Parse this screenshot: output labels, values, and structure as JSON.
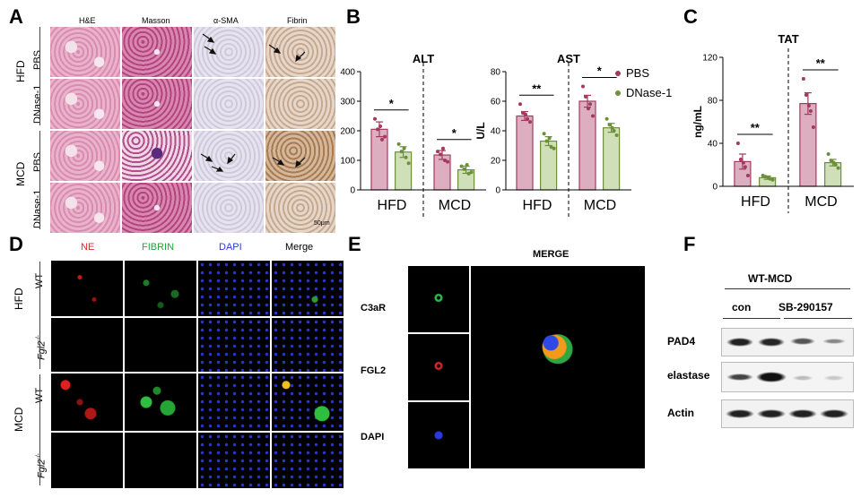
{
  "panels": {
    "a": "A",
    "b": "B",
    "c": "C",
    "d": "D",
    "e": "E",
    "f": "F"
  },
  "panel_a": {
    "columns": [
      "H&E",
      "Masson",
      "α-SMA",
      "Fibrin"
    ],
    "groups": [
      "HFD",
      "MCD"
    ],
    "rows": [
      "PBS",
      "DNase-1",
      "PBS",
      "DNase-1"
    ],
    "scale_bar": "50μm"
  },
  "panel_d": {
    "columns": [
      "NE",
      "FIBRIN",
      "DAPI",
      "Merge"
    ],
    "column_colors": [
      "#e8261c",
      "#1fa83a",
      "#2b3bd8",
      "#000000"
    ],
    "groups": [
      "HFD",
      "MCD"
    ],
    "rows": [
      "WT",
      "Fgl2",
      "WT",
      "Fgl2"
    ],
    "superscript": "-/-"
  },
  "panel_e": {
    "title": "MERGE",
    "rows": [
      "C3aR",
      "FGL2",
      "DAPI"
    ]
  },
  "panel_f": {
    "header": "WT-MCD",
    "groups": [
      "con",
      "SB-290157"
    ],
    "bands": [
      "PAD4",
      "elastase",
      "Actin"
    ]
  },
  "chart_data": [
    {
      "id": "ALT",
      "type": "bar",
      "title": "ALT",
      "ylabel": "",
      "ylim": [
        0,
        400
      ],
      "yticks": [
        0,
        100,
        200,
        300,
        400
      ],
      "groups": [
        "HFD",
        "MCD"
      ],
      "series": [
        {
          "name": "PBS",
          "values": [
            205,
            118
          ],
          "errors": [
            25,
            15
          ],
          "points": [
            [
              240,
              205,
              170,
              180,
              215
            ],
            [
              130,
              120,
              100,
              95,
              140
            ]
          ]
        },
        {
          "name": "DNase-1",
          "values": [
            128,
            68
          ],
          "errors": [
            18,
            12
          ],
          "points": [
            [
              155,
              130,
              110,
              90,
              140
            ],
            [
              80,
              70,
              55,
              60,
              85
            ]
          ]
        }
      ],
      "significance": [
        "*",
        "*"
      ]
    },
    {
      "id": "AST",
      "type": "bar",
      "title": "AST",
      "ylabel": "U/L",
      "ylim": [
        0,
        80
      ],
      "yticks": [
        0,
        20,
        40,
        60,
        80
      ],
      "groups": [
        "HFD",
        "MCD"
      ],
      "series": [
        {
          "name": "PBS",
          "values": [
            50,
            60
          ],
          "errors": [
            3,
            4
          ],
          "points": [
            [
              58,
              52,
              48,
              46,
              51
            ],
            [
              70,
              63,
              58,
              50,
              55
            ]
          ]
        },
        {
          "name": "DNase-1",
          "values": [
            33,
            42
          ],
          "errors": [
            3,
            3
          ],
          "points": [
            [
              38,
              33,
              29,
              28,
              35
            ],
            [
              48,
              44,
              40,
              37,
              42
            ]
          ]
        }
      ],
      "significance": [
        "**",
        "*"
      ],
      "legend": {
        "position": "right",
        "entries": [
          "PBS",
          "DNase-1"
        ]
      }
    },
    {
      "id": "TAT",
      "type": "bar",
      "title": "TAT",
      "ylabel": "ng/mL",
      "ylim": [
        0,
        120
      ],
      "yticks": [
        0,
        40,
        80,
        120
      ],
      "groups": [
        "HFD",
        "MCD"
      ],
      "series": [
        {
          "name": "PBS",
          "values": [
            23,
            77
          ],
          "errors": [
            7,
            10
          ],
          "points": [
            [
              40,
              25,
              18,
              10,
              22
            ],
            [
              100,
              85,
              70,
              55,
              75
            ]
          ]
        },
        {
          "name": "DNase-1",
          "values": [
            8,
            22
          ],
          "errors": [
            1.5,
            3
          ],
          "points": [
            [
              10,
              9,
              7,
              6,
              8
            ],
            [
              30,
              24,
              20,
              17,
              22
            ]
          ]
        }
      ],
      "significance": [
        "**",
        "**"
      ]
    }
  ],
  "colors": {
    "pbs_fill": "#dcaec0",
    "pbs_edge": "#a33a5e",
    "dnase_fill": "#cfe0b8",
    "dnase_edge": "#6c8f3a"
  }
}
